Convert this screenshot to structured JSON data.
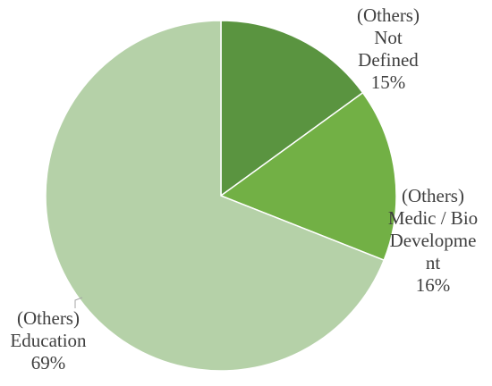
{
  "chart_data": {
    "type": "pie",
    "title": "",
    "start_angle": "12 o'clock",
    "direction": "clockwise",
    "slices": [
      {
        "name": "(Others) Not Defined",
        "value": 15,
        "percent_label": "15%",
        "label_lines": [
          "(Others)",
          "Not",
          "Defined",
          "15%"
        ],
        "color": "#5a9440"
      },
      {
        "name": "(Others) Medic / Bio Development",
        "value": 16,
        "percent_label": "16%",
        "label_lines": [
          "(Others)",
          "Medic / Bio",
          "Developme",
          "nt",
          "16%"
        ],
        "color": "#72b045"
      },
      {
        "name": "(Others) Education",
        "value": 69,
        "percent_label": "69%",
        "label_lines": [
          "(Others)",
          "Education",
          "69%"
        ],
        "color": "#b5d1a8"
      }
    ],
    "leader_line_color": "#a6a6a6",
    "label_color": "#404040"
  }
}
